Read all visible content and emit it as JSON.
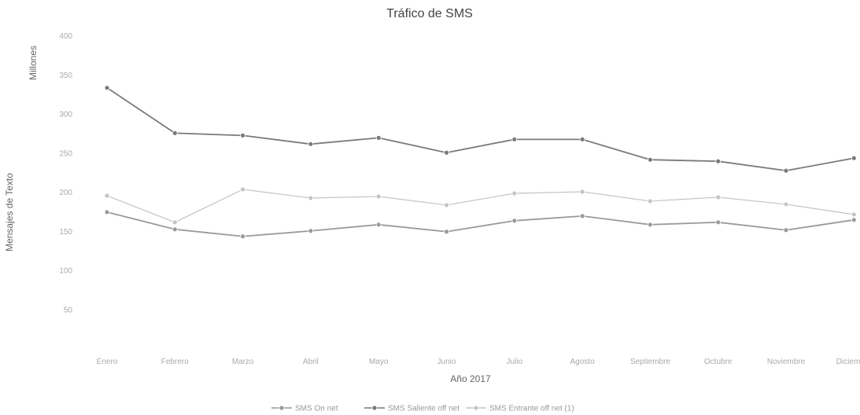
{
  "chart_data": {
    "type": "line",
    "title": "Tráfico de SMS",
    "xlabel": "Año 2017",
    "ylabel": "Mensajes de Texto",
    "y_unit": "Millones",
    "ylim": [
      0,
      400
    ],
    "yticks": [
      50,
      100,
      150,
      200,
      250,
      300,
      350,
      400
    ],
    "grid": false,
    "legend_position": "bottom",
    "categories": [
      "Enero",
      "Febrero",
      "Marzo",
      "Abril",
      "Mayo",
      "Junio",
      "Julio",
      "Agosto",
      "Septiembre",
      "Octubre",
      "Noviembre",
      "Diciembre"
    ],
    "series": [
      {
        "name": "SMS On net",
        "color": "#9a9a9a",
        "values": [
          175,
          153,
          144,
          151,
          159,
          150,
          164,
          170,
          159,
          162,
          152,
          165
        ]
      },
      {
        "name": "SMS Saliente off net",
        "color": "#7a7a7a",
        "values": [
          334,
          276,
          273,
          262,
          270,
          251,
          268,
          268,
          242,
          240,
          228,
          244
        ]
      },
      {
        "name": "SMS Entrante off net (1)",
        "color": "#c4c4c4",
        "values": [
          196,
          162,
          204,
          193,
          195,
          184,
          199,
          201,
          189,
          194,
          185,
          172
        ]
      }
    ]
  }
}
